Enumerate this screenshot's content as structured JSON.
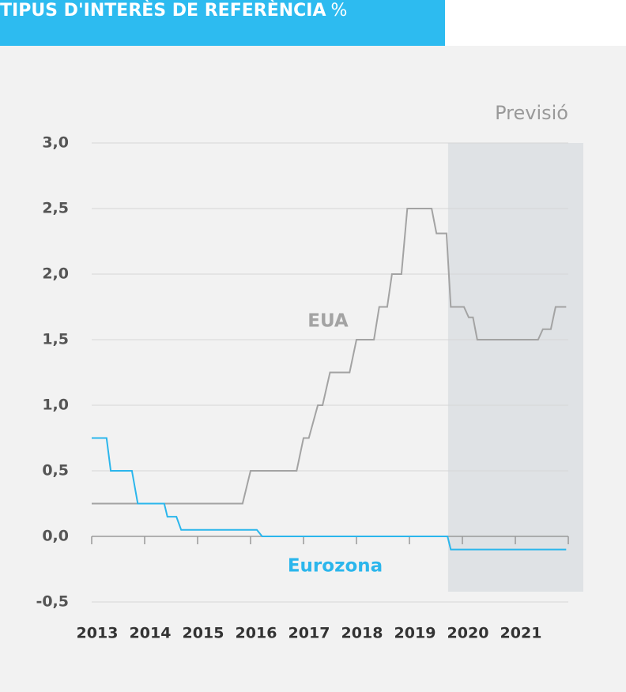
{
  "chart_data": {
    "type": "line",
    "title": "TIPUS D'INTERÈS DE REFERÈNCIA",
    "unit": "%",
    "forecast_label": "Previsió",
    "forecast_start": 2019.73,
    "xlim": [
      2013,
      2022
    ],
    "xticks": [
      2013,
      2014,
      2015,
      2016,
      2017,
      2018,
      2019,
      2020,
      2021
    ],
    "ylim": [
      -0.5,
      3.0
    ],
    "yticks": [
      {
        "value": -0.5,
        "label": "-0,5"
      },
      {
        "value": 0,
        "label": "0,0"
      },
      {
        "value": 0.5,
        "label": "0,5"
      },
      {
        "value": 1,
        "label": "1,0"
      },
      {
        "value": 1.5,
        "label": "1,5"
      },
      {
        "value": 2,
        "label": "2,0"
      },
      {
        "value": 2.5,
        "label": "2,5"
      },
      {
        "value": 3,
        "label": "3,0"
      }
    ],
    "grid": true,
    "series": [
      {
        "name": "EUA",
        "color": "#a3a3a3",
        "x": [
          2013,
          2015.85,
          2016.0,
          2016.87,
          2017.0,
          2017.1,
          2017.27,
          2017.36,
          2017.5,
          2017.87,
          2018.0,
          2018.33,
          2018.43,
          2018.58,
          2018.67,
          2018.85,
          2018.96,
          2019.42,
          2019.51,
          2019.7,
          2019.78,
          2020.03,
          2020.12,
          2020.2,
          2020.28,
          2021.43,
          2021.52,
          2021.67,
          2021.76,
          2021.96
        ],
        "values": [
          0.25,
          0.25,
          0.5,
          0.5,
          0.75,
          0.75,
          1.0,
          1.0,
          1.25,
          1.25,
          1.5,
          1.5,
          1.75,
          1.75,
          2.0,
          2.0,
          2.5,
          2.5,
          2.31,
          2.31,
          1.75,
          1.75,
          1.67,
          1.67,
          1.5,
          1.5,
          1.58,
          1.58,
          1.75,
          1.75
        ]
      },
      {
        "name": "Eurozona",
        "color": "#2bb6ec",
        "x": [
          2013,
          2013.28,
          2013.36,
          2013.76,
          2013.87,
          2014.37,
          2014.43,
          2014.6,
          2014.69,
          2016.12,
          2016.22,
          2019.72,
          2019.78,
          2021.96
        ],
        "values": [
          0.75,
          0.75,
          0.5,
          0.5,
          0.25,
          0.25,
          0.15,
          0.15,
          0.05,
          0.05,
          0.0,
          0.0,
          -0.1,
          -0.1
        ]
      }
    ]
  }
}
